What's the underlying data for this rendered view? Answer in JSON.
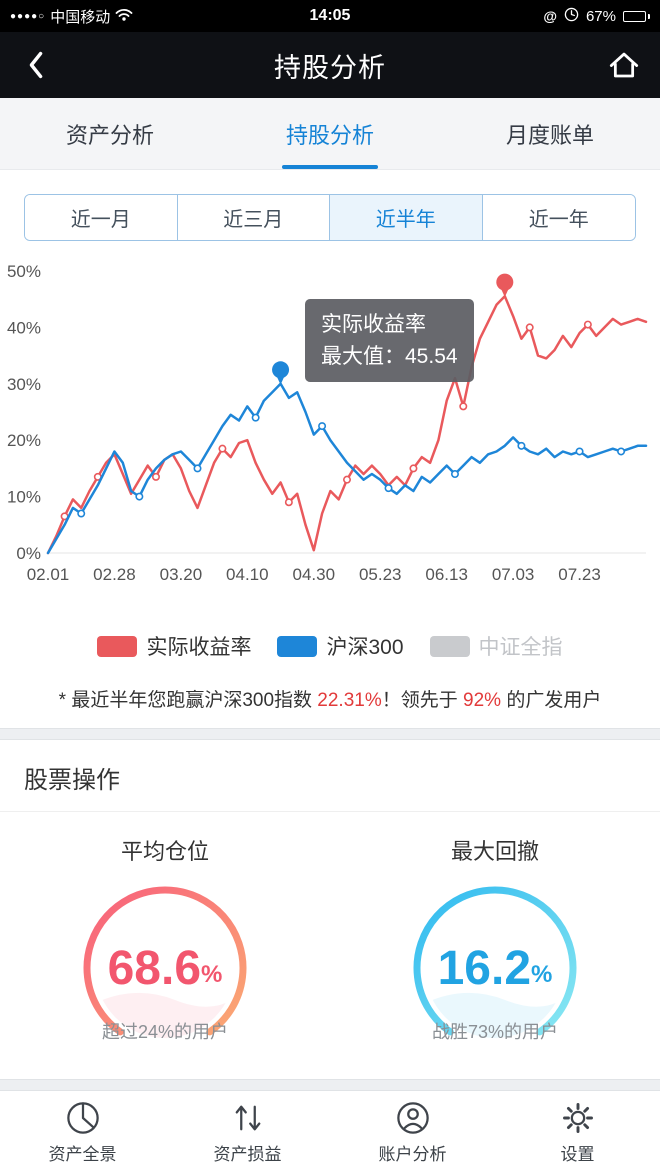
{
  "status_bar": {
    "signal": "●●●●○",
    "carrier": "中国移动",
    "time": "14:05",
    "at": "@",
    "battery": "67%"
  },
  "nav": {
    "title": "持股分析"
  },
  "tabs": [
    {
      "label": "资产分析",
      "active": false
    },
    {
      "label": "持股分析",
      "active": true
    },
    {
      "label": "月度账单",
      "active": false
    }
  ],
  "range_selector": [
    {
      "label": "近一月",
      "active": false
    },
    {
      "label": "近三月",
      "active": false
    },
    {
      "label": "近半年",
      "active": true
    },
    {
      "label": "近一年",
      "active": false
    }
  ],
  "tooltip": {
    "line1": "实际收益率",
    "line2": "最大值：45.54"
  },
  "chart_data": {
    "type": "line",
    "ylim": [
      0,
      50
    ],
    "y_ticks": [
      "0%",
      "10%",
      "20%",
      "30%",
      "40%",
      "50%"
    ],
    "x_labels": [
      "02.01",
      "02.28",
      "03.20",
      "04.10",
      "04.30",
      "05.23",
      "06.13",
      "07.03",
      "07.23"
    ],
    "x_tick_indices": [
      0,
      8,
      16,
      24,
      32,
      40,
      48,
      56,
      64
    ],
    "series": [
      {
        "name": "实际收益率",
        "color": "#e9595c",
        "values": [
          0,
          3,
          6.5,
          9.5,
          8,
          11,
          13.5,
          16,
          17.5,
          14,
          10.5,
          13,
          15.5,
          13.5,
          16.5,
          17.5,
          15,
          11,
          8,
          12,
          16,
          18.5,
          17,
          19.5,
          20,
          16,
          13,
          10.5,
          12.5,
          9,
          10.5,
          5,
          0.5,
          7,
          11,
          9.5,
          13,
          15.5,
          14,
          15.5,
          14,
          12,
          13.5,
          12,
          15,
          17,
          16,
          20,
          27,
          31,
          26,
          33,
          38,
          41,
          44,
          45.54,
          42,
          38,
          40,
          35,
          34.5,
          36,
          38.5,
          36.5,
          39,
          40.5,
          38.5,
          40,
          41.5,
          40.5,
          41,
          41.5,
          41
        ],
        "dot_indices": [
          2,
          6,
          13,
          21,
          29,
          36,
          44,
          50,
          58,
          65
        ],
        "pin": {
          "index": 55,
          "value": 45.54
        }
      },
      {
        "name": "沪深300",
        "color": "#1e86d8",
        "values": [
          0,
          2.5,
          5,
          8,
          7,
          9.5,
          12,
          15,
          18,
          16,
          11,
          10,
          13,
          15,
          16.5,
          17.5,
          18,
          16.5,
          15,
          17.5,
          20,
          22.5,
          24.5,
          23.5,
          26,
          24,
          27,
          28.5,
          30,
          27.5,
          28.5,
          25,
          21,
          22.5,
          20,
          18,
          16,
          14.5,
          13,
          14,
          13,
          11.5,
          10.5,
          12,
          11,
          13.5,
          12.5,
          14,
          15.5,
          14,
          15.5,
          17,
          16,
          17.5,
          18,
          19,
          20.5,
          19,
          18,
          17.5,
          18.5,
          17,
          18,
          17.5,
          18,
          17,
          17.5,
          18,
          18.5,
          18,
          18.5,
          19,
          19
        ],
        "dot_indices": [
          4,
          11,
          18,
          25,
          33,
          41,
          49,
          57,
          64,
          69
        ],
        "pin": {
          "index": 28,
          "value": 30
        }
      }
    ],
    "disabled_series": [
      "中证全指"
    ]
  },
  "legend": [
    {
      "label": "实际收益率",
      "color": "#e9595c",
      "disabled": false
    },
    {
      "label": "沪深300",
      "color": "#1e86d8",
      "disabled": false
    },
    {
      "label": "中证全指",
      "color": "#c9cbce",
      "disabled": true
    }
  ],
  "note": {
    "parts": [
      "* 最近半年您跑赢沪深300指数 ",
      "22.31%",
      "！领先于 ",
      "92%",
      " 的广发用户"
    ]
  },
  "stock_ops": {
    "title": "股票操作",
    "gauges": [
      {
        "title": "平均仓位",
        "value": "68.6",
        "unit": "%",
        "subtext": "超过24%的用户",
        "arc_start": "#f85f7c",
        "arc_end": "#fbaa73",
        "value_color": "#f2566e"
      },
      {
        "title": "最大回撤",
        "value": "16.2",
        "unit": "%",
        "subtext": "战胜73%的用户",
        "arc_start": "#2fb9ef",
        "arc_end": "#8ae8f2",
        "value_color": "#21a3e2"
      }
    ]
  },
  "footer": {
    "items": [
      {
        "label": "资产全景",
        "icon": "pie-clock-icon"
      },
      {
        "label": "资产损益",
        "icon": "arrows-updown-icon"
      },
      {
        "label": "账户分析",
        "icon": "user-circle-icon"
      },
      {
        "label": "设置",
        "icon": "gear-icon"
      }
    ]
  }
}
